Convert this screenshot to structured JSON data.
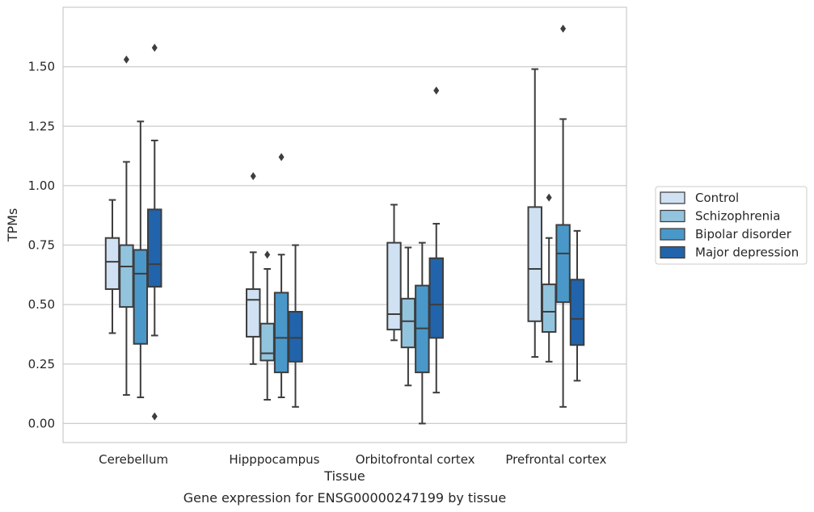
{
  "chart_data": {
    "type": "boxplot",
    "title": "",
    "xlabel": "Tissue",
    "ylabel": "TPMs",
    "caption": "Gene expression for ENSG00000247199 by tissue",
    "ylim": [
      -0.08,
      1.75
    ],
    "yticks": [
      "0.00",
      "0.25",
      "0.50",
      "0.75",
      "1.00",
      "1.25",
      "1.50"
    ],
    "grid": true,
    "legend_position": "right",
    "categories": [
      "Cerebellum",
      "Hipppocampus",
      "Orbitofrontal cortex",
      "Prefrontal cortex"
    ],
    "series": [
      {
        "name": "Control",
        "color": "#cfe1f2",
        "boxes": [
          {
            "whislo": 0.38,
            "q1": 0.565,
            "med": 0.68,
            "q3": 0.78,
            "whishi": 0.94,
            "fliers": []
          },
          {
            "whislo": 0.25,
            "q1": 0.365,
            "med": 0.52,
            "q3": 0.565,
            "whishi": 0.72,
            "fliers": [
              1.04
            ]
          },
          {
            "whislo": 0.35,
            "q1": 0.395,
            "med": 0.46,
            "q3": 0.76,
            "whishi": 0.92,
            "fliers": []
          },
          {
            "whislo": 0.28,
            "q1": 0.43,
            "med": 0.65,
            "q3": 0.91,
            "whishi": 1.49,
            "fliers": []
          }
        ]
      },
      {
        "name": "Schizophrenia",
        "color": "#93c4de",
        "boxes": [
          {
            "whislo": 0.12,
            "q1": 0.49,
            "med": 0.66,
            "q3": 0.75,
            "whishi": 1.1,
            "fliers": [
              1.53
            ]
          },
          {
            "whislo": 0.1,
            "q1": 0.265,
            "med": 0.295,
            "q3": 0.42,
            "whishi": 0.65,
            "fliers": [
              0.71
            ]
          },
          {
            "whislo": 0.16,
            "q1": 0.32,
            "med": 0.43,
            "q3": 0.525,
            "whishi": 0.74,
            "fliers": []
          },
          {
            "whislo": 0.26,
            "q1": 0.385,
            "med": 0.47,
            "q3": 0.585,
            "whishi": 0.78,
            "fliers": [
              0.95
            ]
          }
        ]
      },
      {
        "name": "Bipolar disorder",
        "color": "#4a98c9",
        "boxes": [
          {
            "whislo": 0.11,
            "q1": 0.335,
            "med": 0.63,
            "q3": 0.73,
            "whishi": 1.27,
            "fliers": []
          },
          {
            "whislo": 0.11,
            "q1": 0.215,
            "med": 0.36,
            "q3": 0.55,
            "whishi": 0.71,
            "fliers": [
              1.12
            ]
          },
          {
            "whislo": 0.0,
            "q1": 0.215,
            "med": 0.4,
            "q3": 0.58,
            "whishi": 0.76,
            "fliers": []
          },
          {
            "whislo": 0.07,
            "q1": 0.51,
            "med": 0.715,
            "q3": 0.835,
            "whishi": 1.28,
            "fliers": [
              1.66
            ]
          }
        ]
      },
      {
        "name": "Major depression",
        "color": "#2164ab",
        "boxes": [
          {
            "whislo": 0.37,
            "q1": 0.575,
            "med": 0.67,
            "q3": 0.9,
            "whishi": 1.19,
            "fliers": [
              1.58,
              0.03
            ]
          },
          {
            "whislo": 0.07,
            "q1": 0.26,
            "med": 0.36,
            "q3": 0.47,
            "whishi": 0.75,
            "fliers": []
          },
          {
            "whislo": 0.13,
            "q1": 0.36,
            "med": 0.5,
            "q3": 0.695,
            "whishi": 0.84,
            "fliers": [
              1.4
            ]
          },
          {
            "whislo": 0.18,
            "q1": 0.33,
            "med": 0.44,
            "q3": 0.605,
            "whishi": 0.81,
            "fliers": []
          }
        ]
      }
    ]
  }
}
